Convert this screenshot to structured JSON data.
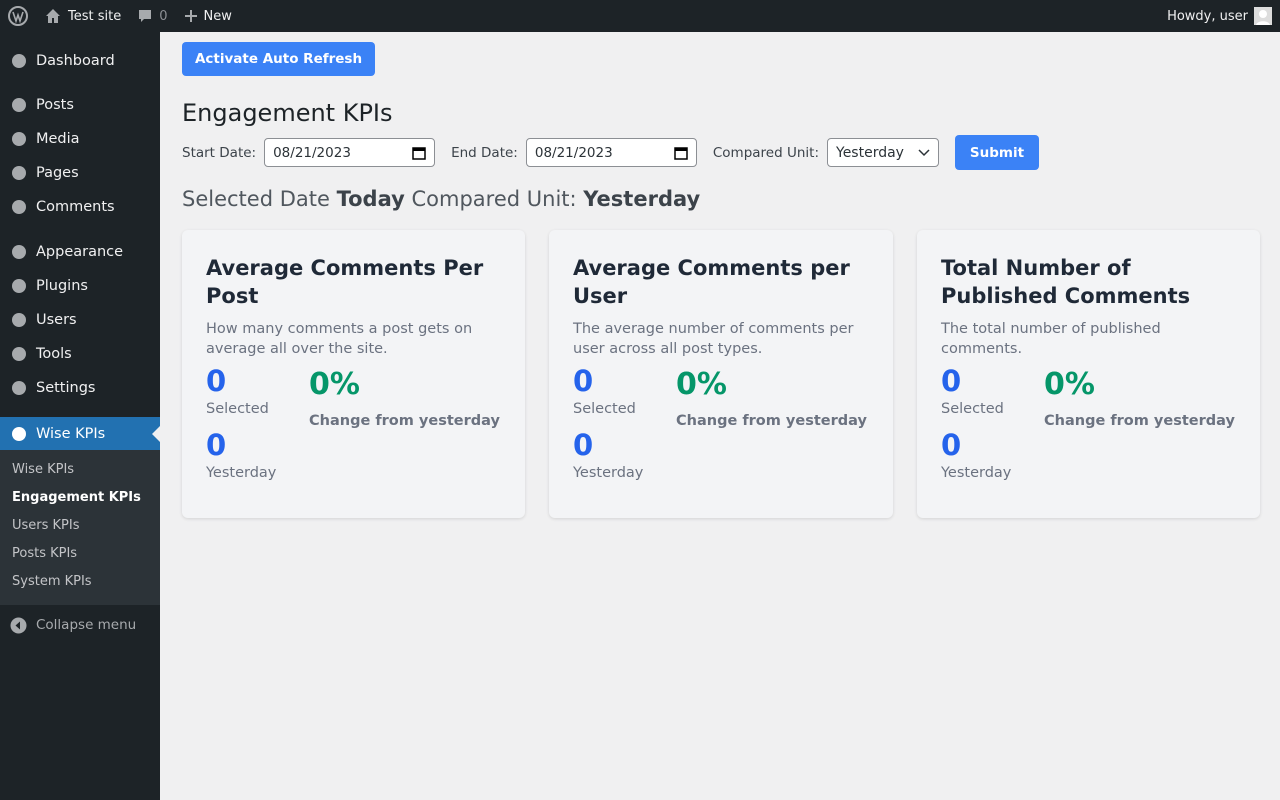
{
  "admin_bar": {
    "site": "Test site",
    "comments": "0",
    "new": "New",
    "greeting": "Howdy, user"
  },
  "menu": {
    "items": [
      "Dashboard",
      "Posts",
      "Media",
      "Pages",
      "Comments",
      "Appearance",
      "Plugins",
      "Users",
      "Tools",
      "Settings",
      "Wise KPIs"
    ],
    "submenu": [
      "Wise KPIs",
      "Engagement KPIs",
      "Users KPIs",
      "Posts KPIs",
      "System KPIs"
    ],
    "collapse": "Collapse menu"
  },
  "page": {
    "refresh_button": "Activate Auto Refresh",
    "title": "Engagement KPIs",
    "form": {
      "start_label": "Start Date:",
      "start_value": "08/21/2023",
      "end_label": "End Date:",
      "end_value": "08/21/2023",
      "unit_label": "Compared Unit:",
      "unit_value": "Yesterday",
      "submit": "Submit"
    },
    "summary": {
      "date_label": "Selected Date",
      "date_value": "Today",
      "unit_label": "Compared Unit:",
      "unit_value": "Yesterday"
    },
    "cards": [
      {
        "title": "Average Comments Per Post",
        "description": "How many comments a post gets on average all over the site.",
        "selected_value": "0",
        "selected_label": "Selected",
        "compared_value": "0",
        "compared_label": "Yesterday",
        "change": "0%",
        "change_label": "Change from yesterday"
      },
      {
        "title": "Average Comments per User",
        "description": "The average number of comments per user across all post types.",
        "selected_value": "0",
        "selected_label": "Selected",
        "compared_value": "0",
        "compared_label": "Yesterday",
        "change": "0%",
        "change_label": "Change from yesterday"
      },
      {
        "title": "Total Number of Published Comments",
        "description": "The total number of published comments.",
        "selected_value": "0",
        "selected_label": "Selected",
        "compared_value": "0",
        "compared_label": "Yesterday",
        "change": "0%",
        "change_label": "Change from yesterday"
      }
    ]
  }
}
